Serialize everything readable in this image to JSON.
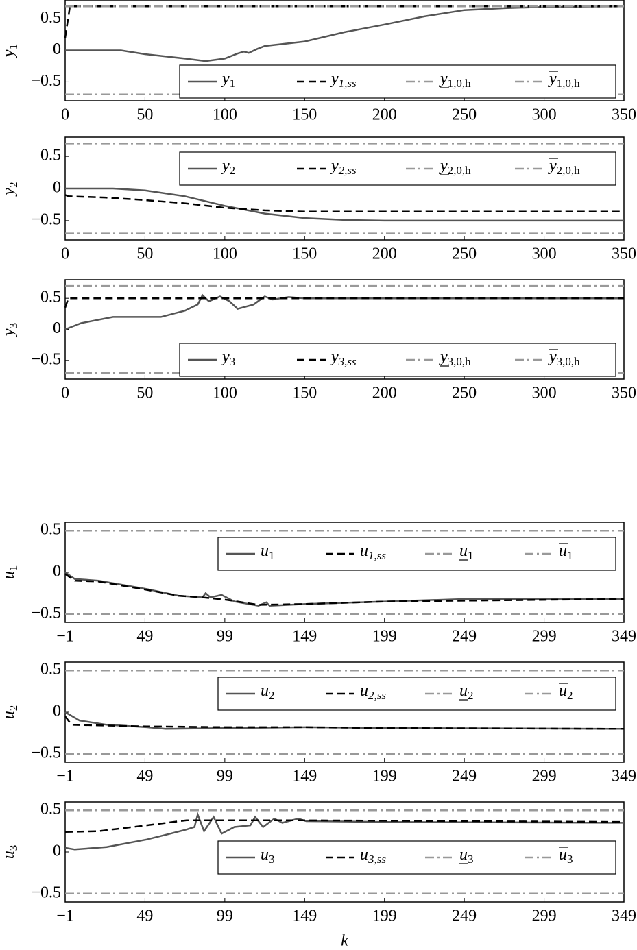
{
  "chart_data": [
    {
      "type": "line",
      "ylabel": {
        "symbol": "y",
        "subscript": "1"
      },
      "xlim": [
        0,
        350
      ],
      "xticks": [
        0,
        50,
        100,
        150,
        200,
        250,
        300,
        350
      ],
      "ylim": [
        -0.8,
        0.8
      ],
      "yticks": [
        {
          "value": -0.5,
          "label": "−0.5"
        },
        0,
        0.5
      ],
      "legend": "lower right",
      "series": [
        {
          "name": "y",
          "subscript": "1",
          "color": "#555555",
          "style": "solid",
          "x": [
            0,
            35,
            50,
            75,
            88,
            100,
            108,
            112,
            115,
            120,
            125,
            150,
            175,
            200,
            225,
            250,
            275,
            300,
            350
          ],
          "values": [
            0,
            0,
            -0.06,
            -0.13,
            -0.17,
            -0.13,
            -0.05,
            -0.02,
            -0.04,
            0.02,
            0.07,
            0.14,
            0.29,
            0.41,
            0.54,
            0.64,
            0.67,
            0.69,
            0.7
          ]
        },
        {
          "name": "y",
          "subscript": "1,ss",
          "color": "#000000",
          "style": "dashed",
          "x": [
            0,
            3,
            350
          ],
          "values": [
            0.2,
            0.7,
            0.7
          ]
        },
        {
          "name": "y",
          "subscript": "1,0,h",
          "bar": "under",
          "color": "#999999",
          "style": "dashdot",
          "x": [
            0,
            350
          ],
          "values": [
            -0.7,
            -0.7
          ]
        },
        {
          "name": "y",
          "subscript": "1,0,h",
          "bar": "over",
          "color": "#999999",
          "style": "dashdot",
          "x": [
            0,
            350
          ],
          "values": [
            0.7,
            0.7
          ]
        }
      ]
    },
    {
      "type": "line",
      "ylabel": {
        "symbol": "y",
        "subscript": "2"
      },
      "xlim": [
        0,
        350
      ],
      "xticks": [
        0,
        50,
        100,
        150,
        200,
        250,
        300,
        350
      ],
      "ylim": [
        -0.8,
        0.8
      ],
      "yticks": [
        {
          "value": -0.5,
          "label": "−0.5"
        },
        0,
        0.5
      ],
      "legend": "upper right",
      "series": [
        {
          "name": "y",
          "subscript": "2",
          "color": "#555555",
          "style": "solid",
          "x": [
            0,
            30,
            50,
            75,
            100,
            125,
            150,
            175,
            200,
            350
          ],
          "values": [
            0,
            0,
            -0.03,
            -0.12,
            -0.27,
            -0.39,
            -0.46,
            -0.49,
            -0.5,
            -0.5
          ]
        },
        {
          "name": "y",
          "subscript": "2,ss",
          "color": "#000000",
          "style": "dashed",
          "x": [
            0,
            2,
            25,
            50,
            75,
            100,
            125,
            150,
            350
          ],
          "values": [
            -0.1,
            -0.12,
            -0.14,
            -0.18,
            -0.23,
            -0.3,
            -0.34,
            -0.36,
            -0.36
          ]
        },
        {
          "name": "y",
          "subscript": "2,0,h",
          "bar": "under",
          "color": "#999999",
          "style": "dashdot",
          "x": [
            0,
            350
          ],
          "values": [
            -0.7,
            -0.7
          ]
        },
        {
          "name": "y",
          "subscript": "2,0,h",
          "bar": "over",
          "color": "#999999",
          "style": "dashdot",
          "x": [
            0,
            350
          ],
          "values": [
            0.7,
            0.7
          ]
        }
      ]
    },
    {
      "type": "line",
      "ylabel": {
        "symbol": "y",
        "subscript": "3"
      },
      "xlim": [
        0,
        350
      ],
      "xticks": [
        0,
        50,
        100,
        150,
        200,
        250,
        300,
        350
      ],
      "ylim": [
        -0.8,
        0.8
      ],
      "yticks": [
        {
          "value": -0.5,
          "label": "−0.5"
        },
        0,
        0.5
      ],
      "legend": "lower right",
      "series": [
        {
          "name": "y",
          "subscript": "3",
          "color": "#555555",
          "style": "solid",
          "x": [
            0,
            10,
            30,
            60,
            75,
            83,
            86,
            90,
            97,
            103,
            108,
            118,
            125,
            130,
            140,
            150,
            350
          ],
          "values": [
            0,
            0.1,
            0.2,
            0.2,
            0.3,
            0.4,
            0.55,
            0.45,
            0.53,
            0.45,
            0.33,
            0.4,
            0.53,
            0.48,
            0.52,
            0.5,
            0.5
          ]
        },
        {
          "name": "y",
          "subscript": "3,ss",
          "color": "#000000",
          "style": "dashed",
          "x": [
            0,
            2,
            350
          ],
          "values": [
            0.35,
            0.5,
            0.5
          ]
        },
        {
          "name": "y",
          "subscript": "3,0,h",
          "bar": "under",
          "color": "#999999",
          "style": "dashdot",
          "x": [
            0,
            350
          ],
          "values": [
            -0.7,
            -0.7
          ]
        },
        {
          "name": "y",
          "subscript": "3,0,h",
          "bar": "over",
          "color": "#999999",
          "style": "dashdot",
          "x": [
            0,
            350
          ],
          "values": [
            0.7,
            0.7
          ]
        }
      ]
    },
    {
      "type": "line",
      "ylabel": {
        "symbol": "u",
        "subscript": "1"
      },
      "xlim": [
        -1,
        349
      ],
      "xticks": [
        {
          "value": -1,
          "label": "−1"
        },
        49,
        99,
        149,
        199,
        249,
        299,
        349
      ],
      "ylim": [
        -0.6,
        0.6
      ],
      "yticks": [
        {
          "value": -0.5,
          "label": "−0.5"
        },
        0,
        0.5
      ],
      "legend": "upper right",
      "series": [
        {
          "name": "u",
          "subscript": "1",
          "color": "#555555",
          "style": "solid",
          "x": [
            -1,
            5,
            20,
            50,
            70,
            85,
            87,
            90,
            97,
            105,
            120,
            125,
            127,
            150,
            200,
            250,
            349
          ],
          "values": [
            0,
            -0.08,
            -0.1,
            -0.2,
            -0.28,
            -0.3,
            -0.25,
            -0.3,
            -0.27,
            -0.35,
            -0.4,
            -0.36,
            -0.4,
            -0.38,
            -0.35,
            -0.32,
            -0.32
          ]
        },
        {
          "name": "u",
          "subscript": "1,ss",
          "color": "#000000",
          "style": "dashed",
          "x": [
            -1,
            5,
            20,
            50,
            70,
            85,
            100,
            120,
            150,
            200,
            349
          ],
          "values": [
            -0.02,
            -0.1,
            -0.11,
            -0.21,
            -0.28,
            -0.3,
            -0.33,
            -0.39,
            -0.38,
            -0.35,
            -0.32
          ]
        },
        {
          "name": "u",
          "subscript": "1",
          "bar": "under",
          "color": "#999999",
          "style": "dashdot",
          "x": [
            -1,
            349
          ],
          "values": [
            -0.5,
            -0.5
          ]
        },
        {
          "name": "u",
          "subscript": "1",
          "bar": "over",
          "color": "#999999",
          "style": "dashdot",
          "x": [
            -1,
            349
          ],
          "values": [
            0.5,
            0.5
          ]
        }
      ]
    },
    {
      "type": "line",
      "ylabel": {
        "symbol": "u",
        "subscript": "2"
      },
      "xlim": [
        -1,
        349
      ],
      "xticks": [
        {
          "value": -1,
          "label": "−1"
        },
        49,
        99,
        149,
        199,
        249,
        299,
        349
      ],
      "ylim": [
        -0.6,
        0.6
      ],
      "yticks": [
        {
          "value": -0.5,
          "label": "−0.5"
        },
        0,
        0.5
      ],
      "legend": "upper right",
      "series": [
        {
          "name": "u",
          "subscript": "2",
          "color": "#555555",
          "style": "solid",
          "x": [
            -1,
            8,
            25,
            50,
            62,
            100,
            150,
            200,
            349
          ],
          "values": [
            0,
            -0.1,
            -0.15,
            -0.18,
            -0.2,
            -0.19,
            -0.18,
            -0.19,
            -0.2
          ]
        },
        {
          "name": "u",
          "subscript": "2,ss",
          "color": "#000000",
          "style": "dashed",
          "x": [
            -1,
            3,
            50,
            100,
            150,
            200,
            349
          ],
          "values": [
            -0.05,
            -0.15,
            -0.17,
            -0.18,
            -0.18,
            -0.19,
            -0.2
          ]
        },
        {
          "name": "u",
          "subscript": "2",
          "bar": "under",
          "color": "#999999",
          "style": "dashdot",
          "x": [
            -1,
            349
          ],
          "values": [
            -0.5,
            -0.5
          ]
        },
        {
          "name": "u",
          "subscript": "2",
          "bar": "over",
          "color": "#999999",
          "style": "dashdot",
          "x": [
            -1,
            349
          ],
          "values": [
            0.5,
            0.5
          ]
        }
      ]
    },
    {
      "type": "line",
      "ylabel": {
        "symbol": "u",
        "subscript": "3"
      },
      "xlabel": "k",
      "xlim": [
        -1,
        349
      ],
      "xticks": [
        {
          "value": -1,
          "label": "−1"
        },
        49,
        99,
        149,
        199,
        249,
        299,
        349
      ],
      "ylim": [
        -0.6,
        0.6
      ],
      "yticks": [
        {
          "value": -0.5,
          "label": "−0.5"
        },
        0,
        0.5
      ],
      "legend": "center right",
      "series": [
        {
          "name": "u",
          "subscript": "3",
          "color": "#555555",
          "style": "solid",
          "x": [
            -1,
            5,
            25,
            50,
            65,
            75,
            80,
            82,
            86,
            92,
            97,
            105,
            115,
            118,
            123,
            130,
            135,
            145,
            150,
            200,
            349
          ],
          "values": [
            0.05,
            0.03,
            0.06,
            0.15,
            0.22,
            0.27,
            0.3,
            0.45,
            0.25,
            0.42,
            0.22,
            0.3,
            0.32,
            0.42,
            0.3,
            0.4,
            0.35,
            0.4,
            0.37,
            0.36,
            0.35
          ]
        },
        {
          "name": "u",
          "subscript": "3,ss",
          "color": "#000000",
          "style": "dashed",
          "x": [
            -1,
            20,
            50,
            75,
            150,
            349
          ],
          "values": [
            0.24,
            0.25,
            0.32,
            0.38,
            0.38,
            0.36
          ]
        },
        {
          "name": "u",
          "subscript": "3",
          "bar": "under",
          "color": "#999999",
          "style": "dashdot",
          "x": [
            -1,
            349
          ],
          "values": [
            -0.5,
            -0.5
          ]
        },
        {
          "name": "u",
          "subscript": "3",
          "bar": "over",
          "color": "#999999",
          "style": "dashdot",
          "x": [
            -1,
            349
          ],
          "values": [
            0.5,
            0.5
          ]
        }
      ]
    }
  ]
}
